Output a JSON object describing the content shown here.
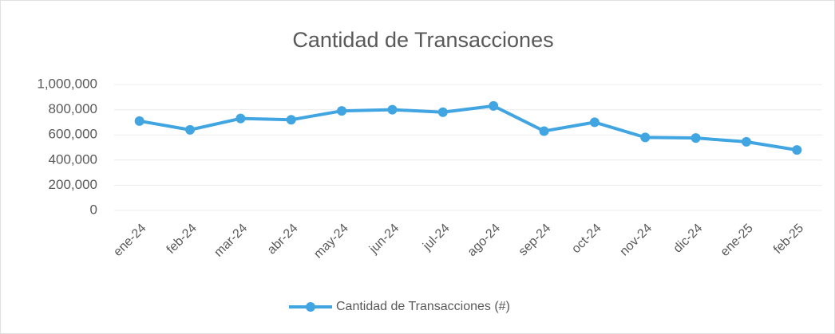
{
  "chart_data": {
    "type": "line",
    "title": "Cantidad de Transacciones",
    "categories": [
      "ene-24",
      "feb-24",
      "mar-24",
      "abr-24",
      "may-24",
      "jun-24",
      "jul-24",
      "ago-24",
      "sep-24",
      "oct-24",
      "nov-24",
      "dic-24",
      "ene-25",
      "feb-25"
    ],
    "series": [
      {
        "name": "Cantidad de Transacciones (#)",
        "color": "#41a5e1",
        "values": [
          710000,
          640000,
          730000,
          720000,
          790000,
          800000,
          780000,
          830000,
          630000,
          700000,
          580000,
          575000,
          545000,
          480000
        ]
      }
    ],
    "ylim": [
      0,
      1000000
    ],
    "yticks": [
      0,
      {
        "value": 200000,
        "label": "200,000"
      },
      {
        "value": 400000,
        "label": "400,000"
      },
      {
        "value": 600000,
        "label": "600,000"
      },
      {
        "value": 800000,
        "label": "800,000"
      },
      {
        "value": 1000000,
        "label": "1,000,000"
      }
    ],
    "grid": true,
    "legend": "bottom"
  }
}
